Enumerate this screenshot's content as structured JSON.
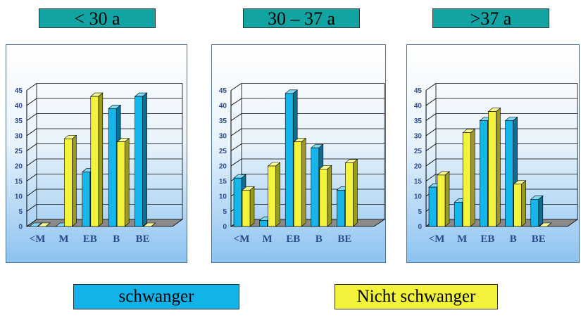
{
  "chart_data": [
    {
      "type": "bar",
      "title": "< 30 a",
      "categories": [
        "<M",
        "M",
        "EB",
        "B",
        "BE"
      ],
      "ylim": [
        0,
        45
      ],
      "yticks": [
        0,
        5,
        10,
        15,
        20,
        25,
        30,
        35,
        40,
        45
      ],
      "series": [
        {
          "name": "schwanger",
          "values": [
            0,
            0,
            18,
            39,
            43
          ]
        },
        {
          "name": "Nicht schwanger",
          "values": [
            0,
            29,
            43,
            28,
            0
          ]
        }
      ]
    },
    {
      "type": "bar",
      "title": "30 – 37 a",
      "categories": [
        "<M",
        "M",
        "EB",
        "B",
        "BE"
      ],
      "ylim": [
        0,
        45
      ],
      "yticks": [
        0,
        5,
        10,
        15,
        20,
        25,
        30,
        35,
        40,
        45
      ],
      "series": [
        {
          "name": "schwanger",
          "values": [
            16,
            2,
            44,
            26,
            12
          ]
        },
        {
          "name": "Nicht schwanger",
          "values": [
            12,
            20,
            28,
            19,
            21
          ]
        }
      ]
    },
    {
      "type": "bar",
      "title": ">37 a",
      "categories": [
        "<M",
        "M",
        "EB",
        "B",
        "BE"
      ],
      "ylim": [
        0,
        45
      ],
      "yticks": [
        0,
        5,
        10,
        15,
        20,
        25,
        30,
        35,
        40,
        45
      ],
      "series": [
        {
          "name": "schwanger",
          "values": [
            13,
            8,
            35,
            35,
            9
          ]
        },
        {
          "name": "Nicht schwanger",
          "values": [
            17,
            31,
            38,
            14,
            0
          ]
        }
      ]
    }
  ],
  "legend": [
    {
      "label": "schwanger",
      "color": "#12b3e8"
    },
    {
      "label": "Nicht schwanger",
      "color": "#f2f23a"
    }
  ],
  "colors": {
    "schwanger": {
      "front": "#16b6ea",
      "side": "#0b6f93",
      "top": "#7fd8f5"
    },
    "nicht_schwanger": {
      "front": "#f3f33c",
      "side": "#9a9a20",
      "top": "#fbfb9a"
    },
    "title_bg": "#12a3a3",
    "floor": "#8a8a8a",
    "axis_text": "#2d4b8c"
  }
}
